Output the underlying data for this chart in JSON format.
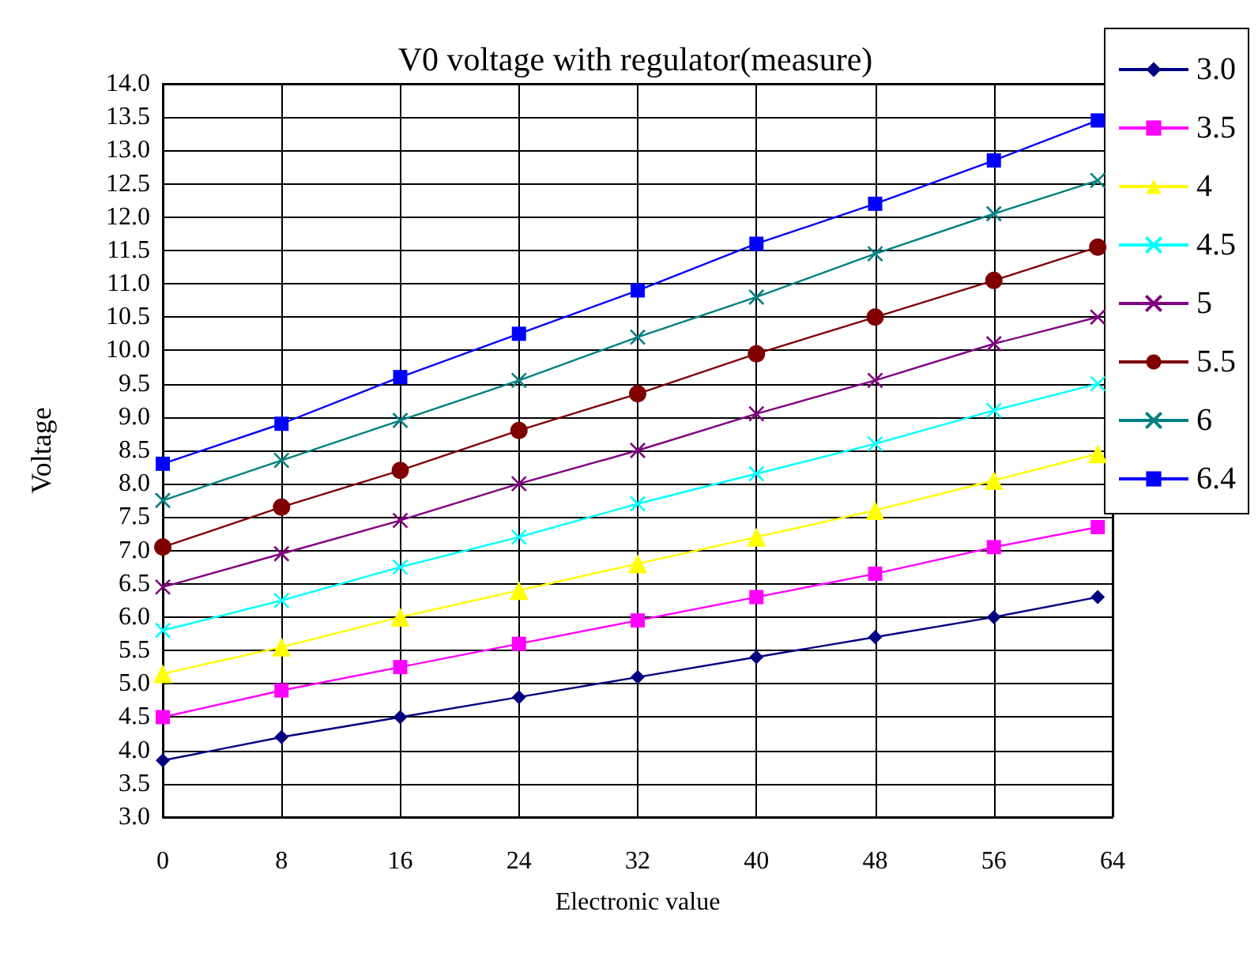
{
  "chart_data": {
    "type": "line",
    "title": "V0 voltage with regulator(measure)",
    "xlabel": "Electronic value",
    "ylabel": "Voltage",
    "x": [
      0,
      8,
      16,
      24,
      32,
      40,
      48,
      56,
      63
    ],
    "xlim": [
      0,
      64
    ],
    "xticks": [
      0,
      8,
      16,
      24,
      32,
      40,
      48,
      56,
      64
    ],
    "ylim": [
      3,
      14
    ],
    "yticks": [
      {
        "value": 3,
        "label": "3.0"
      },
      {
        "value": 3.5,
        "label": "3.5"
      },
      {
        "value": 4,
        "label": "4.0"
      },
      {
        "value": 4.5,
        "label": "4.5"
      },
      {
        "value": 5,
        "label": "5.0"
      },
      {
        "value": 5.5,
        "label": "5.5"
      },
      {
        "value": 6,
        "label": "6.0"
      },
      {
        "value": 6.5,
        "label": "6.5"
      },
      {
        "value": 7,
        "label": "7.0"
      },
      {
        "value": 7.5,
        "label": "7.5"
      },
      {
        "value": 8,
        "label": "8.0"
      },
      {
        "value": 8.5,
        "label": "8.5"
      },
      {
        "value": 9,
        "label": "9.0"
      },
      {
        "value": 9.5,
        "label": "9.5"
      },
      {
        "value": 10,
        "label": "10.0"
      },
      {
        "value": 10.5,
        "label": "10.5"
      },
      {
        "value": 11,
        "label": "11.0"
      },
      {
        "value": 11.5,
        "label": "11.5"
      },
      {
        "value": 12,
        "label": "12.0"
      },
      {
        "value": 12.5,
        "label": "12.5"
      },
      {
        "value": 13,
        "label": "13.0"
      },
      {
        "value": 13.5,
        "label": "13.5"
      },
      {
        "value": 14,
        "label": "14.0"
      }
    ],
    "grid": true,
    "legend": "top right",
    "series": [
      {
        "name": "3.0",
        "color": "#000080",
        "marker": "diamond",
        "values": [
          3.85,
          4.2,
          4.5,
          4.8,
          5.1,
          5.4,
          5.7,
          6.0,
          6.3
        ]
      },
      {
        "name": "3.5",
        "color": "#ff00ff",
        "marker": "square",
        "values": [
          4.5,
          4.9,
          5.25,
          5.6,
          5.95,
          6.3,
          6.65,
          7.05,
          7.35
        ]
      },
      {
        "name": "4",
        "color": "#ffff00",
        "marker": "triangle",
        "values": [
          5.15,
          5.55,
          6.0,
          6.4,
          6.8,
          7.2,
          7.6,
          8.05,
          8.45
        ]
      },
      {
        "name": "4.5",
        "color": "#00ffff",
        "marker": "cross",
        "values": [
          5.8,
          6.25,
          6.75,
          7.2,
          7.7,
          8.15,
          8.6,
          9.1,
          9.5
        ]
      },
      {
        "name": "5",
        "color": "#800080",
        "marker": "cross",
        "values": [
          6.45,
          6.95,
          7.45,
          8.0,
          8.5,
          9.05,
          9.55,
          10.1,
          10.5
        ]
      },
      {
        "name": "5.5",
        "color": "#800000",
        "marker": "circle",
        "values": [
          7.05,
          7.65,
          8.2,
          8.8,
          9.35,
          9.95,
          10.5,
          11.05,
          11.55
        ]
      },
      {
        "name": "6",
        "color": "#008080",
        "marker": "cross",
        "values": [
          7.75,
          8.35,
          8.95,
          9.55,
          10.2,
          10.8,
          11.45,
          12.05,
          12.55
        ]
      },
      {
        "name": "6.4",
        "color": "#0000ff",
        "marker": "square",
        "values": [
          8.3,
          8.9,
          9.6,
          10.25,
          10.9,
          11.6,
          12.2,
          12.85,
          13.45
        ]
      }
    ]
  }
}
